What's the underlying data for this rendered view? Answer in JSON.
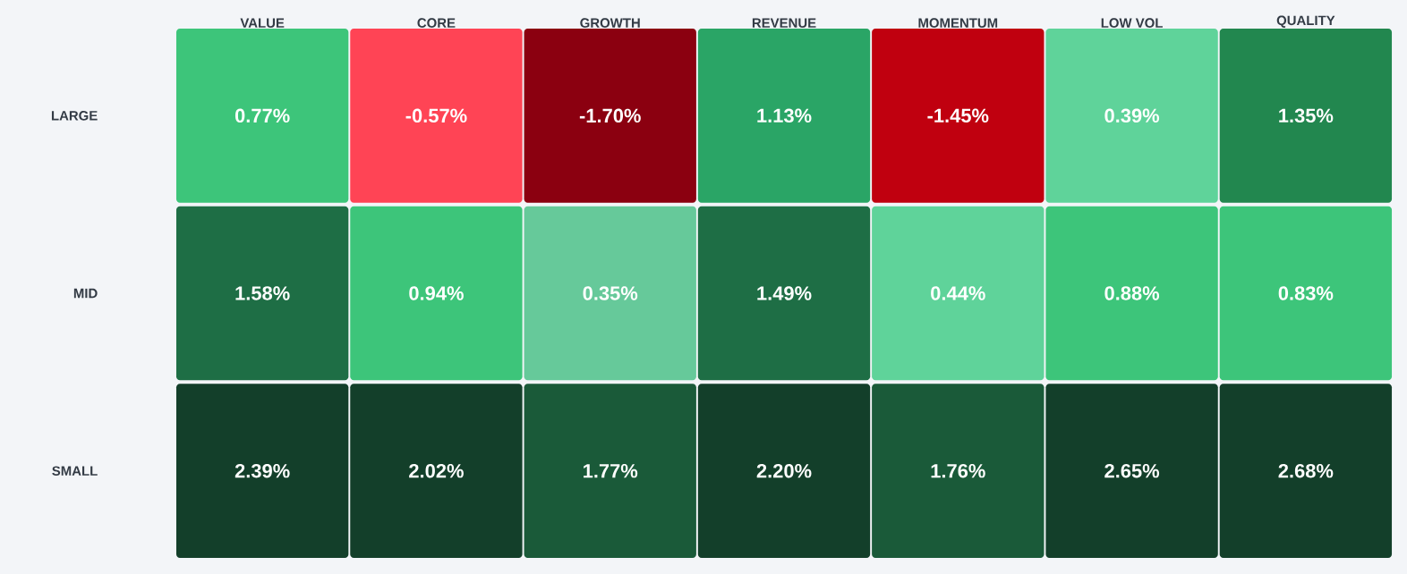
{
  "chart_data": {
    "type": "heatmap",
    "categories": [
      "VALUE",
      "CORE",
      "GROWTH",
      "REVENUE",
      "MOMENTUM",
      "LOW VOL",
      "QUALITY"
    ],
    "y_categories": [
      "LARGE",
      "MID",
      "SMALL"
    ],
    "cells": [
      [
        0.77,
        -0.57,
        -1.7,
        1.13,
        -1.45,
        0.39,
        1.35
      ],
      [
        1.58,
        0.94,
        0.35,
        1.49,
        0.44,
        0.88,
        0.83
      ],
      [
        2.39,
        2.02,
        1.77,
        2.2,
        1.76,
        2.65,
        2.68
      ]
    ],
    "cell_labels": [
      [
        "0.77%",
        "-0.57%",
        "-1.70%",
        "1.13%",
        "-1.45%",
        "0.39%",
        "1.35%"
      ],
      [
        "1.58%",
        "0.94%",
        "0.35%",
        "1.49%",
        "0.44%",
        "0.88%",
        "0.83%"
      ],
      [
        "2.39%",
        "2.02%",
        "1.77%",
        "2.20%",
        "1.76%",
        "2.65%",
        "2.68%"
      ]
    ]
  }
}
